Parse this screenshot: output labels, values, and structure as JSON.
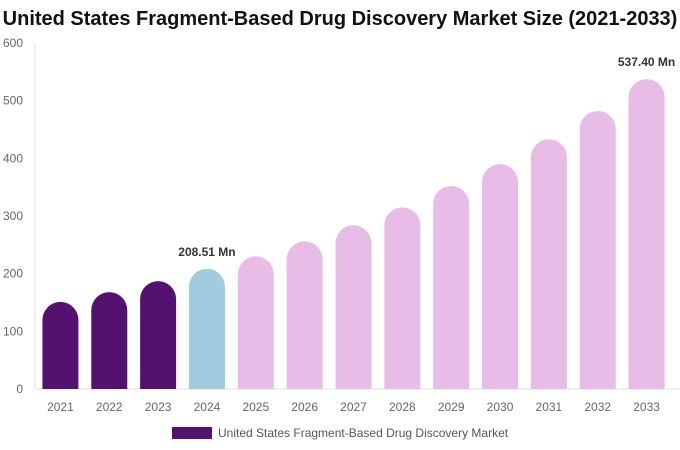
{
  "chart_data": {
    "type": "bar",
    "title": "United States Fragment-Based Drug Discovery Market Size (2021-2033)",
    "categories": [
      "2021",
      "2022",
      "2023",
      "2024",
      "2025",
      "2026",
      "2027",
      "2028",
      "2029",
      "2030",
      "2031",
      "2032",
      "2033"
    ],
    "series": [
      {
        "name": "United States Fragment-Based Drug Discovery Market",
        "values": [
          151,
          168,
          187,
          208.51,
          230,
          256,
          284,
          315,
          352,
          390,
          433,
          482,
          537.4
        ]
      }
    ],
    "data_labels": {
      "2024": "208.51 Mn",
      "2033": "537.40 Mn"
    },
    "ylim": [
      0,
      600
    ],
    "yticks": [
      0,
      100,
      200,
      300,
      400,
      500,
      600
    ],
    "grid": false,
    "legend_position": "bottom",
    "colors": {
      "historical": "#541270",
      "base_year": "#a3cbdf",
      "forecast": "#e7bde8"
    }
  }
}
